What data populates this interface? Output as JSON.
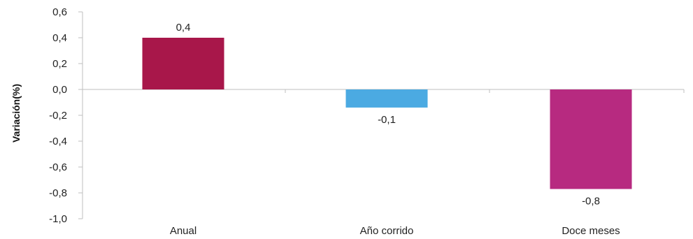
{
  "chart_data": {
    "type": "bar",
    "ylabel": "Variación(%)",
    "categories": [
      "Anual",
      "Año corrido",
      "Doce meses"
    ],
    "values": [
      0.4,
      -0.1,
      -0.8
    ],
    "plotted_values": [
      0.4,
      -0.14,
      -0.77
    ],
    "data_labels": [
      "0,4",
      "-0,1",
      "-0,8"
    ],
    "bar_colors": [
      "#A8174A",
      "#4BAAE2",
      "#B72A80"
    ],
    "ylim": [
      -1.0,
      0.6
    ],
    "yticks": [
      0.6,
      0.4,
      0.2,
      0.0,
      -0.2,
      -0.4,
      -0.6,
      -0.8,
      -1.0
    ],
    "ytick_labels": [
      "0,6",
      "0,4",
      "0,2",
      "0,0",
      "-0,2",
      "-0,4",
      "-0,6",
      "-0,8",
      "-1,0"
    ],
    "grid": false,
    "legend": "none"
  }
}
